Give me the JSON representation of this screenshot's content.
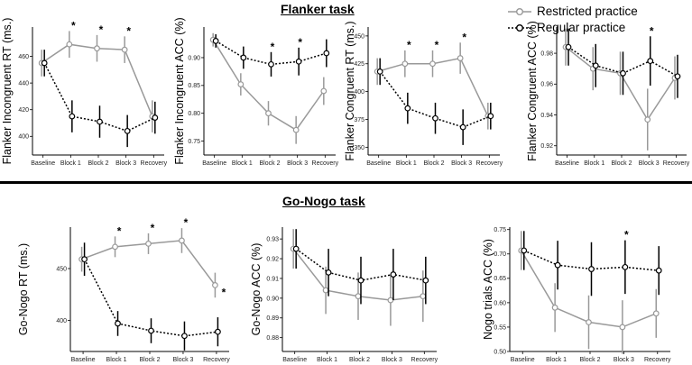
{
  "titles": {
    "flanker": "Flanker task",
    "gonogo": "Go-Nogo task"
  },
  "legend": {
    "restricted": "Restricted practice",
    "regular": "Regular practice",
    "restricted_color": "#999999",
    "regular_color": "#000000"
  },
  "chart_data": [
    {
      "type": "line",
      "ylabel": "Flanker Incongruent RT (ms.)",
      "categories": [
        "Baseline",
        "Block 1",
        "Block 2",
        "Block 3",
        "Recovery"
      ],
      "yticks": [
        400,
        420,
        440,
        460
      ],
      "ylim": [
        386,
        482
      ],
      "series": [
        {
          "name": "Restricted practice",
          "values": [
            455,
            469,
            466,
            465,
            415
          ],
          "err": [
            10,
            10,
            10,
            10,
            12
          ]
        },
        {
          "name": "Regular practice",
          "values": [
            455,
            415,
            411,
            404,
            414
          ],
          "err": [
            10,
            12,
            12,
            12,
            12
          ]
        }
      ],
      "stars": [
        "",
        "*",
        "*",
        "*",
        ""
      ]
    },
    {
      "type": "line",
      "ylabel": "Flanker Incongruent ACC (%)",
      "categories": [
        "Baseline",
        "Block 1",
        "Block 2",
        "Block 3",
        "Recovery"
      ],
      "yticks": [
        0.75,
        0.8,
        0.85,
        0.9
      ],
      "ylim": [
        0.725,
        0.955
      ],
      "series": [
        {
          "name": "Restricted practice",
          "values": [
            0.932,
            0.852,
            0.8,
            0.77,
            0.84
          ],
          "err": [
            0.012,
            0.02,
            0.022,
            0.025,
            0.025
          ]
        },
        {
          "name": "Regular practice",
          "values": [
            0.93,
            0.9,
            0.888,
            0.893,
            0.908
          ],
          "err": [
            0.012,
            0.02,
            0.022,
            0.025,
            0.025
          ]
        }
      ],
      "stars": [
        "",
        "",
        "*",
        "*",
        ""
      ]
    },
    {
      "type": "line",
      "ylabel": "Flanker Congruent RT (ms.)",
      "categories": [
        "Baseline",
        "Block 1",
        "Block 2",
        "Block 3",
        "Recovery"
      ],
      "yticks": [
        350,
        375,
        400,
        425,
        450
      ],
      "ylim": [
        343,
        458
      ],
      "series": [
        {
          "name": "Restricted practice",
          "values": [
            418,
            425,
            425,
            430,
            378
          ],
          "err": [
            12,
            12,
            12,
            14,
            12
          ]
        },
        {
          "name": "Regular practice",
          "values": [
            418,
            385,
            376,
            368,
            378
          ],
          "err": [
            12,
            14,
            14,
            16,
            12
          ]
        }
      ],
      "stars": [
        "",
        "*",
        "*",
        "*",
        ""
      ]
    },
    {
      "type": "line",
      "ylabel": "Flanker Congruent ACC (%)",
      "categories": [
        "Baseline",
        "Block 1",
        "Block 2",
        "Block 3",
        "Recovery"
      ],
      "yticks": [
        0.92,
        0.94,
        0.96,
        0.98
      ],
      "ylim": [
        0.914,
        0.997
      ],
      "series": [
        {
          "name": "Restricted practice",
          "values": [
            0.984,
            0.97,
            0.967,
            0.937,
            0.964
          ],
          "err": [
            0.012,
            0.014,
            0.014,
            0.02,
            0.014
          ]
        },
        {
          "name": "Regular practice",
          "values": [
            0.984,
            0.972,
            0.967,
            0.975,
            0.965
          ],
          "err": [
            0.012,
            0.014,
            0.014,
            0.016,
            0.014
          ]
        }
      ],
      "stars": [
        "",
        "",
        "",
        "*",
        ""
      ]
    },
    {
      "type": "line",
      "ylabel": "Go-Nogo RT (ms.)",
      "categories": [
        "Baseline",
        "Block 1",
        "Block 2",
        "Block 3",
        "Recovery"
      ],
      "yticks": [
        400,
        450
      ],
      "ylim": [
        370,
        490
      ],
      "series": [
        {
          "name": "Restricted practice",
          "values": [
            459,
            471,
            474,
            477,
            434
          ],
          "err": [
            12,
            10,
            10,
            12,
            12
          ]
        },
        {
          "name": "Regular practice",
          "values": [
            459,
            397,
            390,
            385,
            389
          ],
          "err": [
            16,
            12,
            12,
            14,
            14
          ]
        }
      ],
      "stars": [
        "",
        "*",
        "*",
        "*",
        "*"
      ]
    },
    {
      "type": "line",
      "ylabel": "Go-Nogo ACC (%)",
      "categories": [
        "Baseline",
        "Block 1",
        "Block 2",
        "Block 3",
        "Recovery"
      ],
      "yticks": [
        0.88,
        0.89,
        0.9,
        0.91,
        0.92,
        0.93
      ],
      "ylim": [
        0.873,
        0.936
      ],
      "series": [
        {
          "name": "Restricted practice",
          "values": [
            0.925,
            0.904,
            0.901,
            0.899,
            0.901
          ],
          "err": [
            0.01,
            0.012,
            0.012,
            0.013,
            0.013
          ]
        },
        {
          "name": "Regular practice",
          "values": [
            0.925,
            0.913,
            0.909,
            0.912,
            0.909
          ],
          "err": [
            0.01,
            0.012,
            0.012,
            0.013,
            0.012
          ]
        }
      ],
      "stars": [
        "",
        "",
        "",
        "",
        ""
      ]
    },
    {
      "type": "line",
      "ylabel": "Nogo trials ACC (%)",
      "categories": [
        "Baseline",
        "Block 1",
        "Block 2",
        "Block 3",
        "Recovery"
      ],
      "yticks": [
        0.5,
        0.55,
        0.6,
        0.65,
        0.7,
        0.75
      ],
      "ylim": [
        0.5,
        0.755
      ],
      "series": [
        {
          "name": "Restricted practice",
          "values": [
            0.707,
            0.59,
            0.56,
            0.55,
            0.578
          ],
          "err": [
            0.04,
            0.05,
            0.055,
            0.055,
            0.05
          ]
        },
        {
          "name": "Regular practice",
          "values": [
            0.707,
            0.677,
            0.669,
            0.673,
            0.666
          ],
          "err": [
            0.04,
            0.05,
            0.055,
            0.055,
            0.05
          ]
        }
      ],
      "stars": [
        "",
        "",
        "",
        "*",
        ""
      ]
    }
  ]
}
